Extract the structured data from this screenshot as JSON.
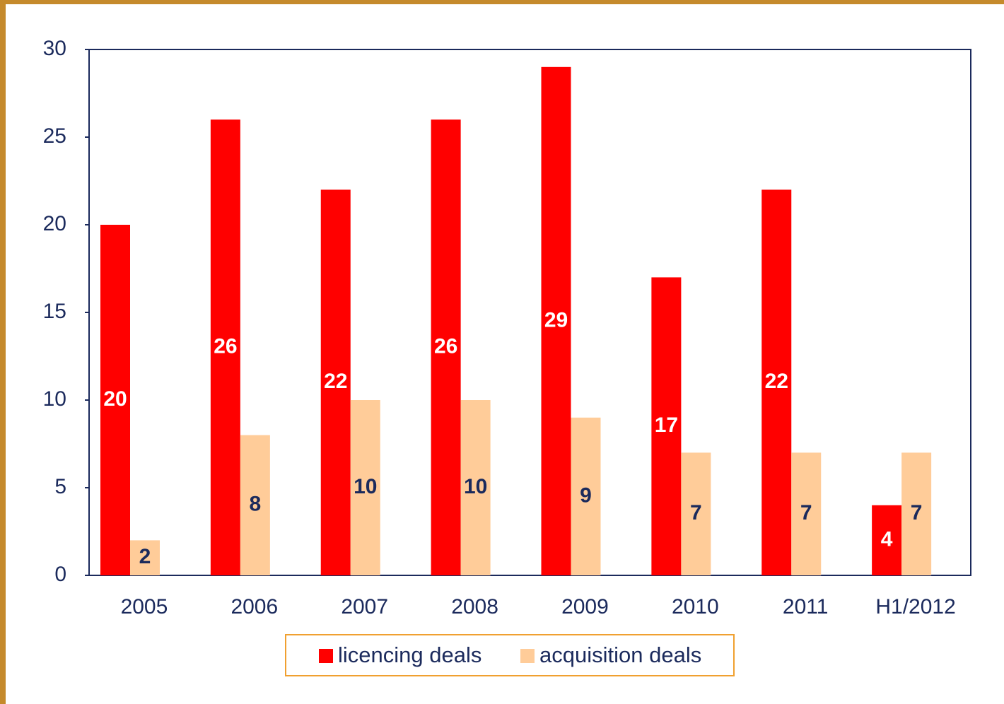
{
  "chart_data": {
    "type": "bar",
    "categories": [
      "2005",
      "2006",
      "2007",
      "2008",
      "2009",
      "2010",
      "2011",
      "H1/2012"
    ],
    "series": [
      {
        "name": "licencing deals",
        "color": "#ff0000",
        "values": [
          20,
          26,
          22,
          26,
          29,
          17,
          22,
          4
        ]
      },
      {
        "name": "acquisition deals",
        "color": "#ffcc99",
        "values": [
          2,
          8,
          10,
          10,
          9,
          7,
          7,
          7
        ]
      }
    ],
    "ylim": [
      0,
      30
    ],
    "yticks": [
      0,
      5,
      10,
      15,
      20,
      25,
      30
    ],
    "grid": false,
    "legend": "bottom"
  }
}
